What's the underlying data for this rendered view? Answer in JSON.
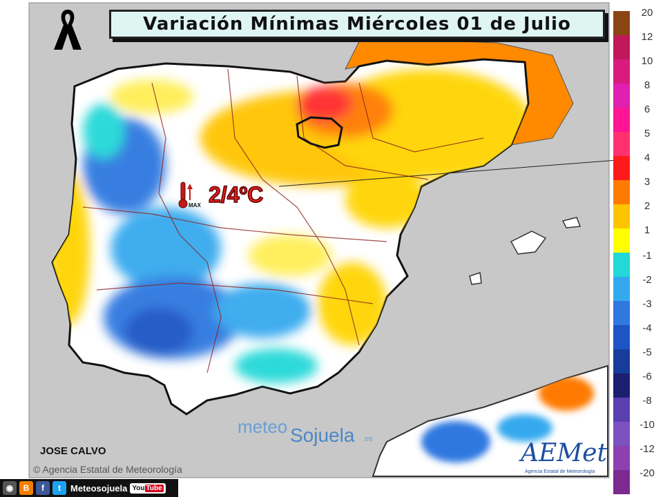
{
  "header": {
    "title": "Variación Mínimas Miércoles 01 de Julio"
  },
  "callout": {
    "text": "2/4ºC",
    "icon_label": "MAX"
  },
  "footer": {
    "author": "JOSE CALVO",
    "credit": "© Agencia Estatal de Meteorología",
    "brand_meteo": "meteo",
    "brand_sojuela": "Sojuela",
    "brand_tld": ".es",
    "aemet_logo": "AEMet",
    "aemet_sub": "Agencia Estatal de Meteorología"
  },
  "social": {
    "label": "Meteosojuela",
    "youtube": "You",
    "youtube_tube": "Tube",
    "icons": [
      "camera-icon",
      "blogger-icon",
      "facebook-icon",
      "twitter-icon"
    ]
  },
  "legend": {
    "labels": [
      "20",
      "12",
      "10",
      "8",
      "6",
      "5",
      "4",
      "3",
      "2",
      "1",
      "-1",
      "-2",
      "-3",
      "-4",
      "-5",
      "-6",
      "-8",
      "-10",
      "-12",
      "-20"
    ],
    "warm_colors": [
      "#8b4513",
      "#c0185a",
      "#d81b7d",
      "#e020b0",
      "#ff1493",
      "#ff3070",
      "#ff1a1a",
      "#ff7a00",
      "#ffc400",
      "#ffff00"
    ],
    "cold_colors": [
      "#22d8d8",
      "#35a9ee",
      "#2f78e0",
      "#1d55c4",
      "#173d9a",
      "#1b1f6e",
      "#5a3fb0",
      "#7b52c0",
      "#8e3fb0",
      "#7c2a90"
    ]
  }
}
